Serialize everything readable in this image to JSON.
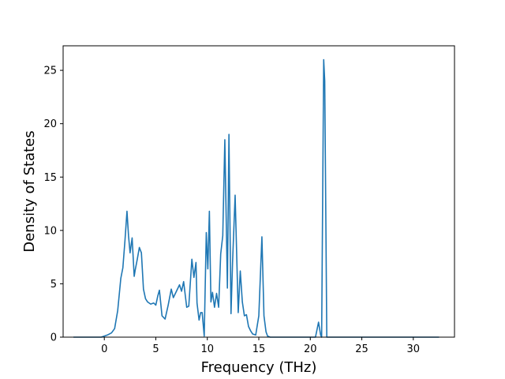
{
  "chart_data": {
    "type": "line",
    "title": "",
    "xlabel": "Frequency (THz)",
    "ylabel": "Density of States",
    "xlim": [
      -4.0,
      34.0
    ],
    "ylim": [
      0,
      27.3
    ],
    "xticks": [
      0,
      5,
      10,
      15,
      20,
      25,
      30
    ],
    "yticks": [
      0,
      5,
      10,
      15,
      20,
      25
    ],
    "grid": false,
    "legend": "none",
    "series": [
      {
        "color": "#1f77b4",
        "x": [
          -3.0,
          -0.3,
          0.0,
          0.3,
          0.7,
          1.0,
          1.3,
          1.6,
          1.8,
          2.0,
          2.2,
          2.35,
          2.5,
          2.7,
          2.9,
          3.0,
          3.2,
          3.4,
          3.6,
          3.8,
          4.0,
          4.2,
          4.5,
          4.8,
          5.0,
          5.2,
          5.35,
          5.6,
          5.9,
          6.2,
          6.5,
          6.7,
          7.0,
          7.3,
          7.5,
          7.7,
          8.0,
          8.2,
          8.5,
          8.7,
          8.9,
          9.0,
          9.2,
          9.35,
          9.5,
          9.7,
          9.9,
          10.05,
          10.2,
          10.35,
          10.5,
          10.7,
          10.9,
          11.1,
          11.3,
          11.5,
          11.7,
          11.95,
          12.1,
          12.3,
          12.45,
          12.7,
          13.0,
          13.2,
          13.4,
          13.6,
          13.8,
          14.0,
          14.2,
          14.4,
          14.7,
          15.0,
          15.3,
          15.5,
          15.7,
          15.85,
          16.1,
          16.5,
          20.5,
          20.8,
          21.0,
          21.1,
          21.3,
          21.4,
          21.6,
          21.8,
          22.0,
          32.5
        ],
        "y": [
          0,
          0,
          0.1,
          0.2,
          0.4,
          0.8,
          2.5,
          5.5,
          6.5,
          9.0,
          11.8,
          9.5,
          7.9,
          9.3,
          5.7,
          6.3,
          7.3,
          8.4,
          7.9,
          4.5,
          3.6,
          3.3,
          3.1,
          3.2,
          3.0,
          3.9,
          4.4,
          2.0,
          1.7,
          3.0,
          4.5,
          3.7,
          4.3,
          4.9,
          4.3,
          5.2,
          2.8,
          2.9,
          7.3,
          5.6,
          7.0,
          3.2,
          1.6,
          2.3,
          2.3,
          0.1,
          9.8,
          6.4,
          11.8,
          3.3,
          4.2,
          2.8,
          4.1,
          2.8,
          7.8,
          9.5,
          18.5,
          4.6,
          19.0,
          2.2,
          7.0,
          13.3,
          2.3,
          6.2,
          3.3,
          2.0,
          2.1,
          1.0,
          0.6,
          0.3,
          0.2,
          2.0,
          9.4,
          2.0,
          0.5,
          0.1,
          0,
          0,
          0,
          1.4,
          0.2,
          0,
          26.0,
          24.0,
          0,
          0,
          0,
          0
        ]
      }
    ]
  }
}
